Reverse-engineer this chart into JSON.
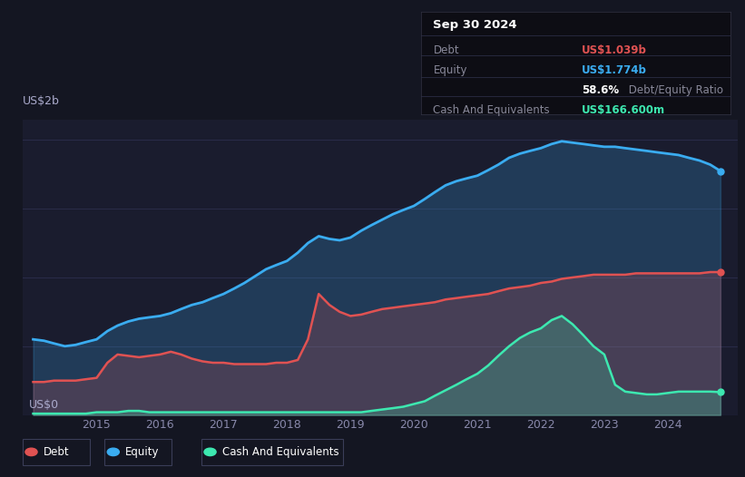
{
  "bg_color": "#141622",
  "plot_bg_color": "#1a1c2e",
  "debt_color": "#e05252",
  "equity_color": "#3aacf0",
  "cash_color": "#3de8b0",
  "grid_color": "#2a2d44",
  "tooltip": {
    "date": "Sep 30 2024",
    "debt_label": "Debt",
    "debt_value": "US$1.039b",
    "equity_label": "Equity",
    "equity_value": "US$1.774b",
    "ratio_bold": "58.6%",
    "ratio_text": " Debt/Equity Ratio",
    "cash_label": "Cash And Equivalents",
    "cash_value": "US$166.600m"
  },
  "years": [
    2014.0,
    2014.17,
    2014.33,
    2014.5,
    2014.67,
    2014.83,
    2015.0,
    2015.17,
    2015.33,
    2015.5,
    2015.67,
    2015.83,
    2016.0,
    2016.17,
    2016.33,
    2016.5,
    2016.67,
    2016.83,
    2017.0,
    2017.17,
    2017.33,
    2017.5,
    2017.67,
    2017.83,
    2018.0,
    2018.17,
    2018.33,
    2018.5,
    2018.67,
    2018.83,
    2019.0,
    2019.17,
    2019.33,
    2019.5,
    2019.67,
    2019.83,
    2020.0,
    2020.17,
    2020.33,
    2020.5,
    2020.67,
    2020.83,
    2021.0,
    2021.17,
    2021.33,
    2021.5,
    2021.67,
    2021.83,
    2022.0,
    2022.17,
    2022.33,
    2022.5,
    2022.67,
    2022.83,
    2023.0,
    2023.17,
    2023.33,
    2023.5,
    2023.67,
    2023.83,
    2024.0,
    2024.17,
    2024.33,
    2024.5,
    2024.67,
    2024.83
  ],
  "equity": [
    0.55,
    0.54,
    0.52,
    0.5,
    0.51,
    0.53,
    0.55,
    0.61,
    0.65,
    0.68,
    0.7,
    0.71,
    0.72,
    0.74,
    0.77,
    0.8,
    0.82,
    0.85,
    0.88,
    0.92,
    0.96,
    1.01,
    1.06,
    1.09,
    1.12,
    1.18,
    1.25,
    1.3,
    1.28,
    1.27,
    1.29,
    1.34,
    1.38,
    1.42,
    1.46,
    1.49,
    1.52,
    1.57,
    1.62,
    1.67,
    1.7,
    1.72,
    1.74,
    1.78,
    1.82,
    1.87,
    1.9,
    1.92,
    1.94,
    1.97,
    1.99,
    1.98,
    1.97,
    1.96,
    1.95,
    1.95,
    1.94,
    1.93,
    1.92,
    1.91,
    1.9,
    1.89,
    1.87,
    1.85,
    1.82,
    1.774
  ],
  "debt": [
    0.24,
    0.24,
    0.25,
    0.25,
    0.25,
    0.26,
    0.27,
    0.38,
    0.44,
    0.43,
    0.42,
    0.43,
    0.44,
    0.46,
    0.44,
    0.41,
    0.39,
    0.38,
    0.38,
    0.37,
    0.37,
    0.37,
    0.37,
    0.38,
    0.38,
    0.4,
    0.55,
    0.88,
    0.8,
    0.75,
    0.72,
    0.73,
    0.75,
    0.77,
    0.78,
    0.79,
    0.8,
    0.81,
    0.82,
    0.84,
    0.85,
    0.86,
    0.87,
    0.88,
    0.9,
    0.92,
    0.93,
    0.94,
    0.96,
    0.97,
    0.99,
    1.0,
    1.01,
    1.02,
    1.02,
    1.02,
    1.02,
    1.03,
    1.03,
    1.03,
    1.03,
    1.03,
    1.03,
    1.03,
    1.039,
    1.039
  ],
  "cash": [
    0.01,
    0.01,
    0.01,
    0.01,
    0.01,
    0.01,
    0.02,
    0.02,
    0.02,
    0.03,
    0.03,
    0.02,
    0.02,
    0.02,
    0.02,
    0.02,
    0.02,
    0.02,
    0.02,
    0.02,
    0.02,
    0.02,
    0.02,
    0.02,
    0.02,
    0.02,
    0.02,
    0.02,
    0.02,
    0.02,
    0.02,
    0.02,
    0.03,
    0.04,
    0.05,
    0.06,
    0.08,
    0.1,
    0.14,
    0.18,
    0.22,
    0.26,
    0.3,
    0.36,
    0.43,
    0.5,
    0.56,
    0.6,
    0.63,
    0.69,
    0.72,
    0.66,
    0.58,
    0.5,
    0.44,
    0.22,
    0.17,
    0.16,
    0.15,
    0.15,
    0.16,
    0.17,
    0.17,
    0.17,
    0.17,
    0.1666
  ],
  "xlim": [
    2013.83,
    2025.1
  ],
  "ylim": [
    0.0,
    2.15
  ],
  "xticks": [
    2015,
    2016,
    2017,
    2018,
    2019,
    2020,
    2021,
    2022,
    2023,
    2024
  ],
  "ylabel_top": "US$2b",
  "ylabel_bottom": "US$0"
}
